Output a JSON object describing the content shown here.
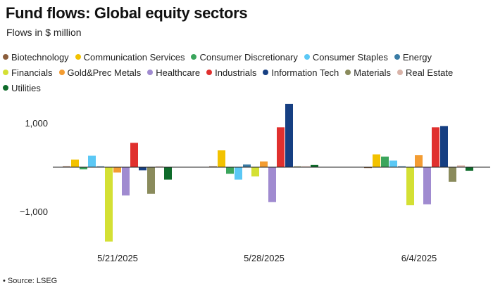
{
  "header": {
    "title": "Fund flows: Global equity sectors",
    "subtitle": "Flows in $ million"
  },
  "footer": {
    "source": "• Source: LSEG"
  },
  "chart_data": {
    "type": "bar",
    "title": "Fund flows: Global equity sectors",
    "subtitle": "Flows in $ million",
    "xlabel": "",
    "ylabel": "",
    "ylim": [
      -1700,
      1500
    ],
    "yticks": [
      1000,
      -1000
    ],
    "ytick_labels": [
      "1,000",
      "−1,000"
    ],
    "grid": false,
    "legend_position": "top",
    "categories": [
      "5/21/2025",
      "5/28/2025",
      "6/4/2025"
    ],
    "series": [
      {
        "name": "Biotechnology",
        "color": "#8B5E3C",
        "values": [
          0,
          10,
          -15
        ]
      },
      {
        "name": "Communication Services",
        "color": "#F2C200",
        "values": [
          170,
          380,
          290
        ]
      },
      {
        "name": "Consumer Discretionary",
        "color": "#3BA55C",
        "values": [
          -50,
          -150,
          240
        ]
      },
      {
        "name": "Consumer Staples",
        "color": "#5BC8F5",
        "values": [
          260,
          -280,
          150
        ]
      },
      {
        "name": "Energy",
        "color": "#3A7CA5",
        "values": [
          0,
          60,
          20
        ]
      },
      {
        "name": "Financials",
        "color": "#D4E034",
        "values": [
          -1680,
          -210,
          -860
        ]
      },
      {
        "name": "Gold&Prec Metals",
        "color": "#F39C32",
        "values": [
          -120,
          130,
          270
        ]
      },
      {
        "name": "Healthcare",
        "color": "#A08BD0",
        "values": [
          -640,
          -790,
          -840
        ]
      },
      {
        "name": "Industrials",
        "color": "#E0302E",
        "values": [
          550,
          900,
          900
        ]
      },
      {
        "name": "Information Tech",
        "color": "#163F82",
        "values": [
          -70,
          1430,
          930
        ]
      },
      {
        "name": "Materials",
        "color": "#8A8B5C",
        "values": [
          -600,
          10,
          -330
        ]
      },
      {
        "name": "Real Estate",
        "color": "#D9B3A8",
        "values": [
          0,
          0,
          40
        ]
      },
      {
        "name": "Utilities",
        "color": "#0E6B2A",
        "values": [
          -280,
          50,
          -80
        ]
      }
    ]
  }
}
